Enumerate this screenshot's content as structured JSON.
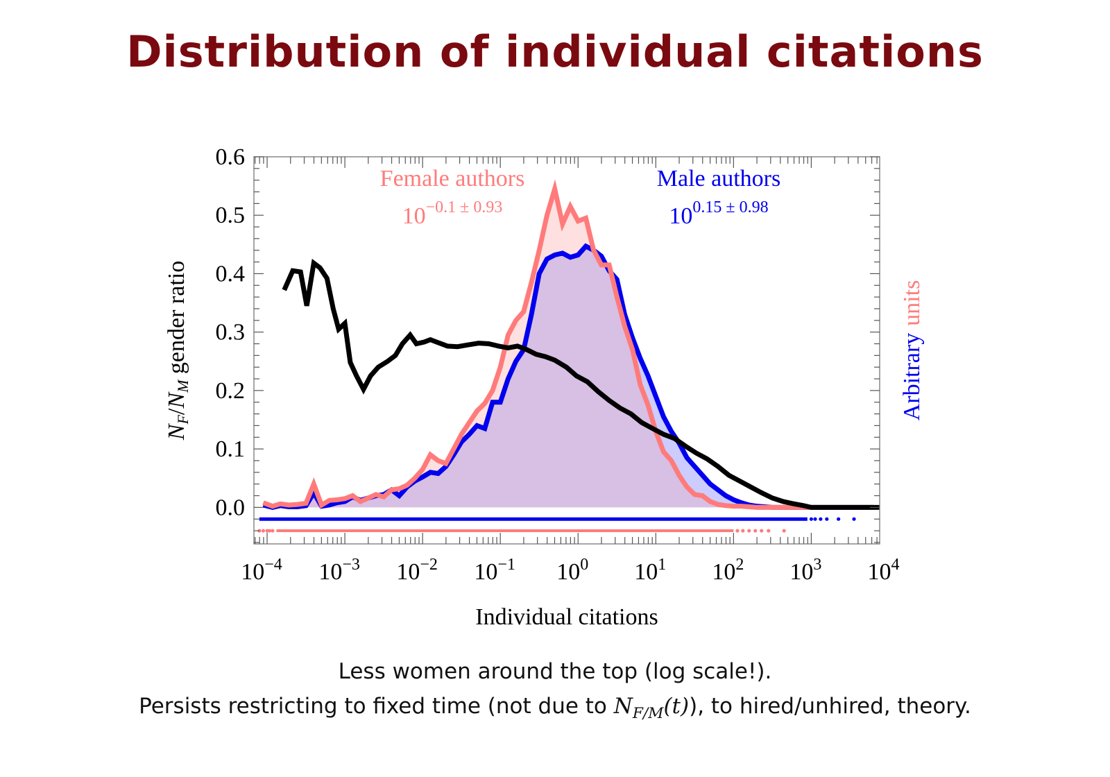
{
  "slide": {
    "title": "Distribution of individual citations",
    "caption_line1": "Less women around the top (log scale!).",
    "caption_line2_before": "Persists restricting to fixed time (not due to ",
    "caption_line2_math_N": "N",
    "caption_line2_math_sub": "F/M",
    "caption_line2_math_arg": "(t)",
    "caption_line2_after": "), to hired/unhired, theory."
  },
  "colors": {
    "title": "#7a0a0f",
    "female": "#ff7b7b",
    "male": "#0000ee",
    "ratio": "#000000",
    "female_fill": "#ffe0e0",
    "male_fill": "#ccccff",
    "overlap_fill": "#d8bfe4"
  },
  "chart_data": {
    "type": "line",
    "title": "",
    "xlabel": "Individual citations",
    "ylabel_parts": {
      "N1": "N",
      "sub1": "F",
      "slash": "/",
      "N2": "N",
      "sub2": "M",
      "rest": " gender ratio"
    },
    "right_ylabel": {
      "part1": "Arbitrary",
      "part2": "units"
    },
    "x_scale": "log",
    "xlim_log10": [
      -4.17,
      3.88
    ],
    "ylim": [
      -0.0625,
      0.6
    ],
    "x_ticks_log10": [
      -4,
      -3,
      -2,
      -1,
      0,
      1,
      2,
      3,
      4
    ],
    "x_tick_labels": [
      "10",
      "10",
      "10",
      "10",
      "10",
      "10",
      "10",
      "10",
      "10"
    ],
    "x_tick_exponents": [
      "−4",
      "−3",
      "−2",
      "−1",
      "0",
      "1",
      "2",
      "3",
      "4"
    ],
    "y_ticks": [
      0.0,
      0.1,
      0.2,
      0.3,
      0.4,
      0.5,
      0.6
    ],
    "y_tick_labels": [
      "0.0",
      "0.1",
      "0.2",
      "0.3",
      "0.4",
      "0.5",
      "0.6"
    ],
    "grid": false,
    "annotations": {
      "female_label": "Female authors",
      "female_stat_base": "10",
      "female_stat_exp": "−0.1 ± 0.93",
      "male_label": "Male authors",
      "male_stat_base": "10",
      "male_stat_exp": "0.15 ± 0.98"
    },
    "series": [
      {
        "name": "Female authors (distribution, arbitrary units)",
        "color_key": "female",
        "x_log10": [
          -4.05,
          -3.93,
          -3.83,
          -3.72,
          -3.61,
          -3.5,
          -3.4,
          -3.3,
          -3.2,
          -3.1,
          -3.0,
          -2.9,
          -2.8,
          -2.7,
          -2.6,
          -2.5,
          -2.4,
          -2.3,
          -2.2,
          -2.1,
          -2.0,
          -1.9,
          -1.8,
          -1.7,
          -1.6,
          -1.5,
          -1.4,
          -1.3,
          -1.2,
          -1.1,
          -1.0,
          -0.9,
          -0.8,
          -0.7,
          -0.6,
          -0.5,
          -0.4,
          -0.3,
          -0.2,
          -0.1,
          0.0,
          0.1,
          0.2,
          0.3,
          0.4,
          0.5,
          0.6,
          0.7,
          0.8,
          0.9,
          1.0,
          1.1,
          1.2,
          1.3,
          1.4,
          1.5,
          1.6,
          1.7,
          1.8,
          1.9,
          2.0,
          2.1,
          2.2,
          2.3,
          2.4,
          2.5,
          2.6,
          2.7,
          2.8,
          2.9,
          3.0,
          3.2,
          3.5,
          3.8
        ],
        "y": [
          0.008,
          0.002,
          0.006,
          0.004,
          0.005,
          0.007,
          0.04,
          0.004,
          0.012,
          0.013,
          0.015,
          0.02,
          0.01,
          0.016,
          0.022,
          0.018,
          0.03,
          0.032,
          0.038,
          0.05,
          0.065,
          0.09,
          0.08,
          0.075,
          0.1,
          0.125,
          0.145,
          0.165,
          0.178,
          0.2,
          0.24,
          0.295,
          0.32,
          0.335,
          0.385,
          0.44,
          0.5,
          0.545,
          0.485,
          0.515,
          0.49,
          0.495,
          0.44,
          0.415,
          0.415,
          0.36,
          0.31,
          0.27,
          0.21,
          0.175,
          0.13,
          0.095,
          0.08,
          0.055,
          0.035,
          0.022,
          0.02,
          0.01,
          0.005,
          0.003,
          0.002,
          0.002,
          0.001,
          0.0,
          0.0,
          0.0,
          0.0,
          0.0,
          0.0,
          0.0,
          0.0,
          0.0,
          0.0,
          0.0
        ]
      },
      {
        "name": "Male authors (distribution, arbitrary units)",
        "color_key": "male",
        "x_log10": [
          -4.05,
          -3.93,
          -3.83,
          -3.72,
          -3.61,
          -3.5,
          -3.4,
          -3.3,
          -3.2,
          -3.1,
          -3.0,
          -2.9,
          -2.8,
          -2.7,
          -2.6,
          -2.5,
          -2.4,
          -2.3,
          -2.2,
          -2.1,
          -2.0,
          -1.9,
          -1.8,
          -1.7,
          -1.6,
          -1.5,
          -1.4,
          -1.3,
          -1.2,
          -1.1,
          -1.0,
          -0.9,
          -0.8,
          -0.7,
          -0.6,
          -0.5,
          -0.4,
          -0.3,
          -0.2,
          -0.1,
          0.0,
          0.1,
          0.2,
          0.3,
          0.4,
          0.5,
          0.6,
          0.7,
          0.8,
          0.9,
          1.0,
          1.1,
          1.2,
          1.3,
          1.4,
          1.5,
          1.6,
          1.7,
          1.8,
          1.9,
          2.0,
          2.1,
          2.2,
          2.3,
          2.4,
          2.5,
          2.6,
          2.7,
          2.8,
          2.9,
          3.0,
          3.2,
          3.5,
          3.8
        ],
        "y": [
          0.004,
          0.0,
          0.003,
          0.001,
          0.001,
          0.003,
          0.025,
          0.002,
          0.004,
          0.008,
          0.01,
          0.018,
          0.012,
          0.016,
          0.02,
          0.022,
          0.03,
          0.02,
          0.035,
          0.045,
          0.052,
          0.06,
          0.058,
          0.07,
          0.09,
          0.112,
          0.125,
          0.14,
          0.135,
          0.18,
          0.18,
          0.22,
          0.25,
          0.27,
          0.33,
          0.4,
          0.425,
          0.432,
          0.435,
          0.428,
          0.432,
          0.447,
          0.44,
          0.43,
          0.405,
          0.39,
          0.33,
          0.29,
          0.255,
          0.225,
          0.19,
          0.155,
          0.13,
          0.11,
          0.085,
          0.07,
          0.055,
          0.04,
          0.03,
          0.02,
          0.013,
          0.008,
          0.004,
          0.002,
          0.001,
          0.0,
          0.0,
          0.0,
          0.0,
          0.0,
          0.0,
          0.0,
          0.0,
          0.0
        ]
      },
      {
        "name": "NF/NM gender ratio",
        "color_key": "ratio",
        "x_log10": [
          -3.78,
          -3.67,
          -3.57,
          -3.49,
          -3.4,
          -3.32,
          -3.23,
          -3.15,
          -3.08,
          -3.0,
          -2.93,
          -2.85,
          -2.76,
          -2.67,
          -2.57,
          -2.45,
          -2.35,
          -2.26,
          -2.16,
          -2.08,
          -1.98,
          -1.9,
          -1.8,
          -1.68,
          -1.55,
          -1.42,
          -1.28,
          -1.15,
          -1.02,
          -0.9,
          -0.78,
          -0.66,
          -0.54,
          -0.42,
          -0.3,
          -0.15,
          -0.02,
          0.12,
          0.26,
          0.4,
          0.54,
          0.68,
          0.82,
          0.96,
          1.1,
          1.24,
          1.38,
          1.52,
          1.66,
          1.8,
          1.94,
          2.08,
          2.22,
          2.36,
          2.5,
          2.64,
          2.78,
          2.9,
          3.0,
          3.5,
          3.88
        ],
        "y": [
          0.372,
          0.405,
          0.403,
          0.345,
          0.418,
          0.41,
          0.392,
          0.34,
          0.305,
          0.315,
          0.248,
          0.225,
          0.202,
          0.225,
          0.24,
          0.25,
          0.26,
          0.28,
          0.295,
          0.28,
          0.283,
          0.287,
          0.282,
          0.276,
          0.275,
          0.278,
          0.281,
          0.28,
          0.276,
          0.273,
          0.276,
          0.27,
          0.262,
          0.258,
          0.252,
          0.24,
          0.225,
          0.215,
          0.198,
          0.183,
          0.17,
          0.16,
          0.145,
          0.135,
          0.125,
          0.118,
          0.105,
          0.093,
          0.083,
          0.07,
          0.055,
          0.045,
          0.035,
          0.025,
          0.016,
          0.01,
          0.006,
          0.003,
          0.0,
          0.0,
          0.0
        ]
      }
    ],
    "rug": [
      {
        "name": "Male individual values",
        "color_key": "male",
        "y": -0.02,
        "solid_log10": [
          -4.1,
          2.95
        ],
        "dots_log10": [
          3.0,
          3.05,
          3.12,
          3.2,
          3.35,
          3.55
        ]
      },
      {
        "name": "Female individual values",
        "color_key": "female",
        "y": -0.04,
        "solid_log10": [
          -3.88,
          2.0
        ],
        "dots_log10": [
          -4.1,
          -4.05,
          -4.0,
          -3.97,
          -3.93,
          2.05,
          2.12,
          2.2,
          2.28,
          2.36,
          2.45,
          2.65
        ]
      }
    ]
  }
}
